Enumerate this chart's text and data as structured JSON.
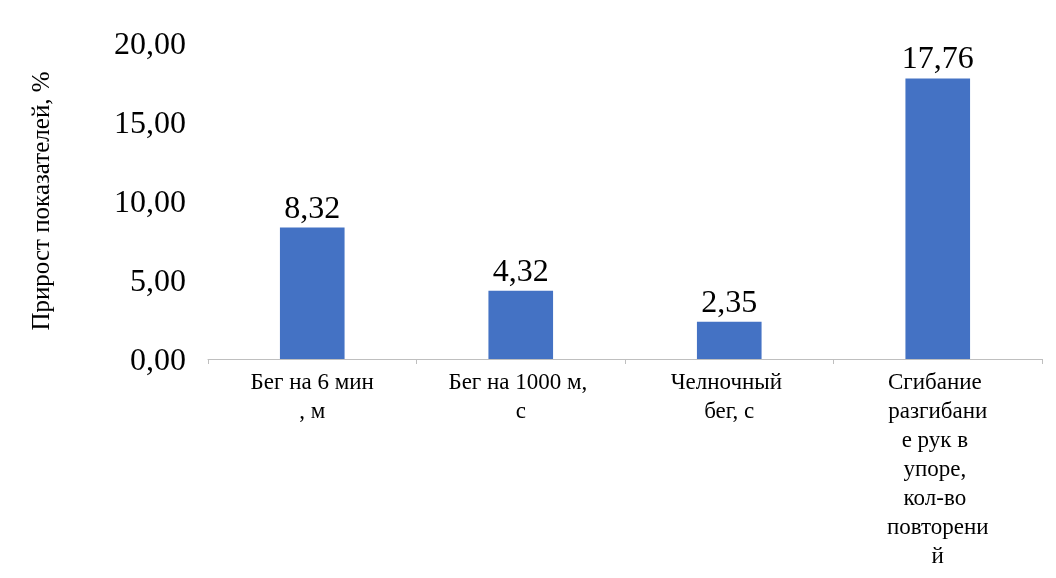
{
  "chart_data": {
    "type": "bar",
    "ylabel": "Прирост показателей, %",
    "categories": [
      "Бег на 6 мин, м",
      "Бег на 1000 м, с",
      "Челночный бег, с",
      "Сгибание разгибание рук в упоре, кол-во повторений"
    ],
    "values": [
      8.32,
      4.32,
      2.35,
      17.76
    ],
    "color": "#4472c4",
    "value_labels": [
      "8,32",
      "4,32",
      "2,35",
      "17,76"
    ],
    "ylim": [
      0,
      20
    ],
    "yticks": [
      {
        "value": 0,
        "label": "0,00"
      },
      {
        "value": 5,
        "label": "5,00"
      },
      {
        "value": 10,
        "label": "10,00"
      },
      {
        "value": 15,
        "label": "15,00"
      },
      {
        "value": 20,
        "label": "20,00"
      }
    ],
    "grid": false
  }
}
